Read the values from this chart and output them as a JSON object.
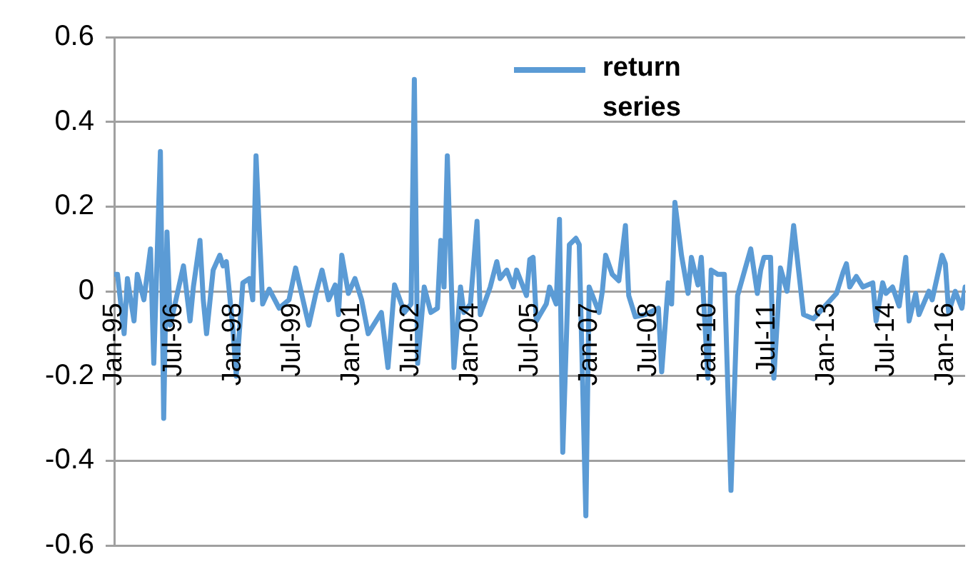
{
  "chart_data": {
    "type": "line",
    "x": [
      "1995-01",
      "1995-02",
      "1995-04",
      "1995-05",
      "1995-07",
      "1995-08",
      "1995-10",
      "1995-12",
      "1996-01",
      "1996-03",
      "1996-04",
      "1996-05",
      "1996-06",
      "1996-10",
      "1996-12",
      "1997-01",
      "1997-03",
      "1997-04",
      "1997-05",
      "1997-07",
      "1997-09",
      "1997-10",
      "1997-11",
      "1998-01",
      "1998-02",
      "1998-04",
      "1998-06",
      "1998-07",
      "1998-08",
      "1998-10",
      "1998-12",
      "1999-03",
      "1999-06",
      "1999-08",
      "1999-12",
      "2000-02",
      "2000-04",
      "2000-06",
      "2000-08",
      "2000-09",
      "2000-10",
      "2000-12",
      "2001-02",
      "2001-04",
      "2001-06",
      "2001-10",
      "2001-12",
      "2002-02",
      "2002-05",
      "2002-07",
      "2002-08",
      "2002-09",
      "2002-11",
      "2003-01",
      "2003-03",
      "2003-04",
      "2003-05",
      "2003-06",
      "2003-08",
      "2003-10",
      "2003-11",
      "2004-01",
      "2004-03",
      "2004-04",
      "2004-07",
      "2004-09",
      "2004-10",
      "2004-12",
      "2005-02",
      "2005-03",
      "2005-06",
      "2005-07",
      "2005-08",
      "2005-09",
      "2005-12",
      "2006-01",
      "2006-03",
      "2006-04",
      "2006-05",
      "2006-07",
      "2006-09",
      "2006-10",
      "2006-12",
      "2007-01",
      "2007-03",
      "2007-04",
      "2007-05",
      "2007-06",
      "2007-08",
      "2007-10",
      "2007-12",
      "2008-01",
      "2008-03",
      "2008-06",
      "2008-10",
      "2008-11",
      "2009-01",
      "2009-02",
      "2009-03",
      "2009-05",
      "2009-07",
      "2009-08",
      "2009-10",
      "2009-11",
      "2010-01",
      "2010-02",
      "2010-04",
      "2010-06",
      "2010-08",
      "2010-10",
      "2010-12",
      "2011-02",
      "2011-04",
      "2011-05",
      "2011-06",
      "2011-08",
      "2011-09",
      "2011-11",
      "2012-01",
      "2012-03",
      "2012-06",
      "2012-09",
      "2013-04",
      "2013-06",
      "2013-07",
      "2013-08",
      "2013-10",
      "2013-12",
      "2014-03",
      "2014-04",
      "2014-06",
      "2014-07",
      "2014-09",
      "2014-11",
      "2015-01",
      "2015-02",
      "2015-04",
      "2015-05",
      "2015-08",
      "2015-09",
      "2015-12",
      "2016-01",
      "2016-02",
      "2016-04",
      "2016-06",
      "2016-07"
    ],
    "series": [
      {
        "name": "return series",
        "color": "#5b9bd5",
        "values": [
          0.04,
          0.04,
          -0.1,
          0.03,
          -0.07,
          0.04,
          -0.02,
          0.1,
          -0.17,
          0.33,
          -0.3,
          0.14,
          -0.08,
          0.06,
          -0.07,
          0.01,
          0.12,
          -0.02,
          -0.1,
          0.05,
          0.085,
          0.06,
          0.07,
          -0.09,
          -0.2,
          0.02,
          0.03,
          -0.02,
          0.32,
          -0.03,
          0.005,
          -0.04,
          -0.02,
          0.055,
          -0.08,
          -0.01,
          0.05,
          -0.02,
          0.015,
          -0.055,
          0.085,
          -0.005,
          0.03,
          -0.02,
          -0.1,
          -0.05,
          -0.18,
          0.015,
          -0.05,
          -0.03,
          0.5,
          -0.17,
          0.01,
          -0.05,
          -0.04,
          0.12,
          0.01,
          0.32,
          -0.18,
          0.01,
          -0.05,
          -0.03,
          0.165,
          -0.055,
          0.01,
          0.07,
          0.03,
          0.05,
          0.01,
          0.05,
          -0.01,
          0.075,
          0.08,
          -0.07,
          -0.03,
          0.01,
          -0.03,
          0.17,
          -0.38,
          0.11,
          0.125,
          0.11,
          -0.53,
          0.01,
          -0.03,
          -0.05,
          0,
          0.085,
          0.04,
          0.025,
          0.155,
          -0.01,
          -0.06,
          -0.055,
          -0.04,
          -0.19,
          0.02,
          -0.03,
          0.21,
          0.085,
          -0.005,
          0.08,
          0.015,
          0.08,
          -0.205,
          0.05,
          0.04,
          0.04,
          -0.47,
          -0.01,
          0.045,
          0.1,
          -0.005,
          0.05,
          0.08,
          0.08,
          -0.205,
          0.055,
          0,
          0.155,
          -0.055,
          -0.065,
          -0.005,
          0.045,
          0.065,
          0.01,
          0.035,
          0.01,
          0.02,
          -0.07,
          0.02,
          -0.005,
          0.01,
          -0.035,
          0.08,
          -0.07,
          -0.005,
          -0.055,
          0,
          -0.02,
          0.085,
          0.065,
          -0.05,
          0,
          -0.04,
          0.01
        ]
      }
    ],
    "xlim": [
      "1995-01",
      "2016-07"
    ],
    "xticks": [
      {
        "value": "1995-01",
        "label": "Jan-95"
      },
      {
        "value": "1996-07",
        "label": "Jul-96"
      },
      {
        "value": "1998-01",
        "label": "Jan-98"
      },
      {
        "value": "1999-07",
        "label": "Jul-99"
      },
      {
        "value": "2001-01",
        "label": "Jan-01"
      },
      {
        "value": "2002-07",
        "label": "Jul-02"
      },
      {
        "value": "2004-01",
        "label": "Jan-04"
      },
      {
        "value": "2005-07",
        "label": "Jul-05"
      },
      {
        "value": "2007-01",
        "label": "Jan-07"
      },
      {
        "value": "2008-07",
        "label": "Jul-08"
      },
      {
        "value": "2010-01",
        "label": "Jan-10"
      },
      {
        "value": "2011-07",
        "label": "Jul-11"
      },
      {
        "value": "2013-01",
        "label": "Jan-13"
      },
      {
        "value": "2014-07",
        "label": "Jul-14"
      },
      {
        "value": "2016-01",
        "label": "Jan-16"
      }
    ],
    "ylim": [
      -0.6,
      0.6
    ],
    "yticks": [
      -0.6,
      -0.4,
      -0.2,
      0,
      0.2,
      0.4,
      0.6
    ],
    "grid": "y",
    "legend": "top right",
    "marker": "none",
    "line_style": "solid"
  }
}
